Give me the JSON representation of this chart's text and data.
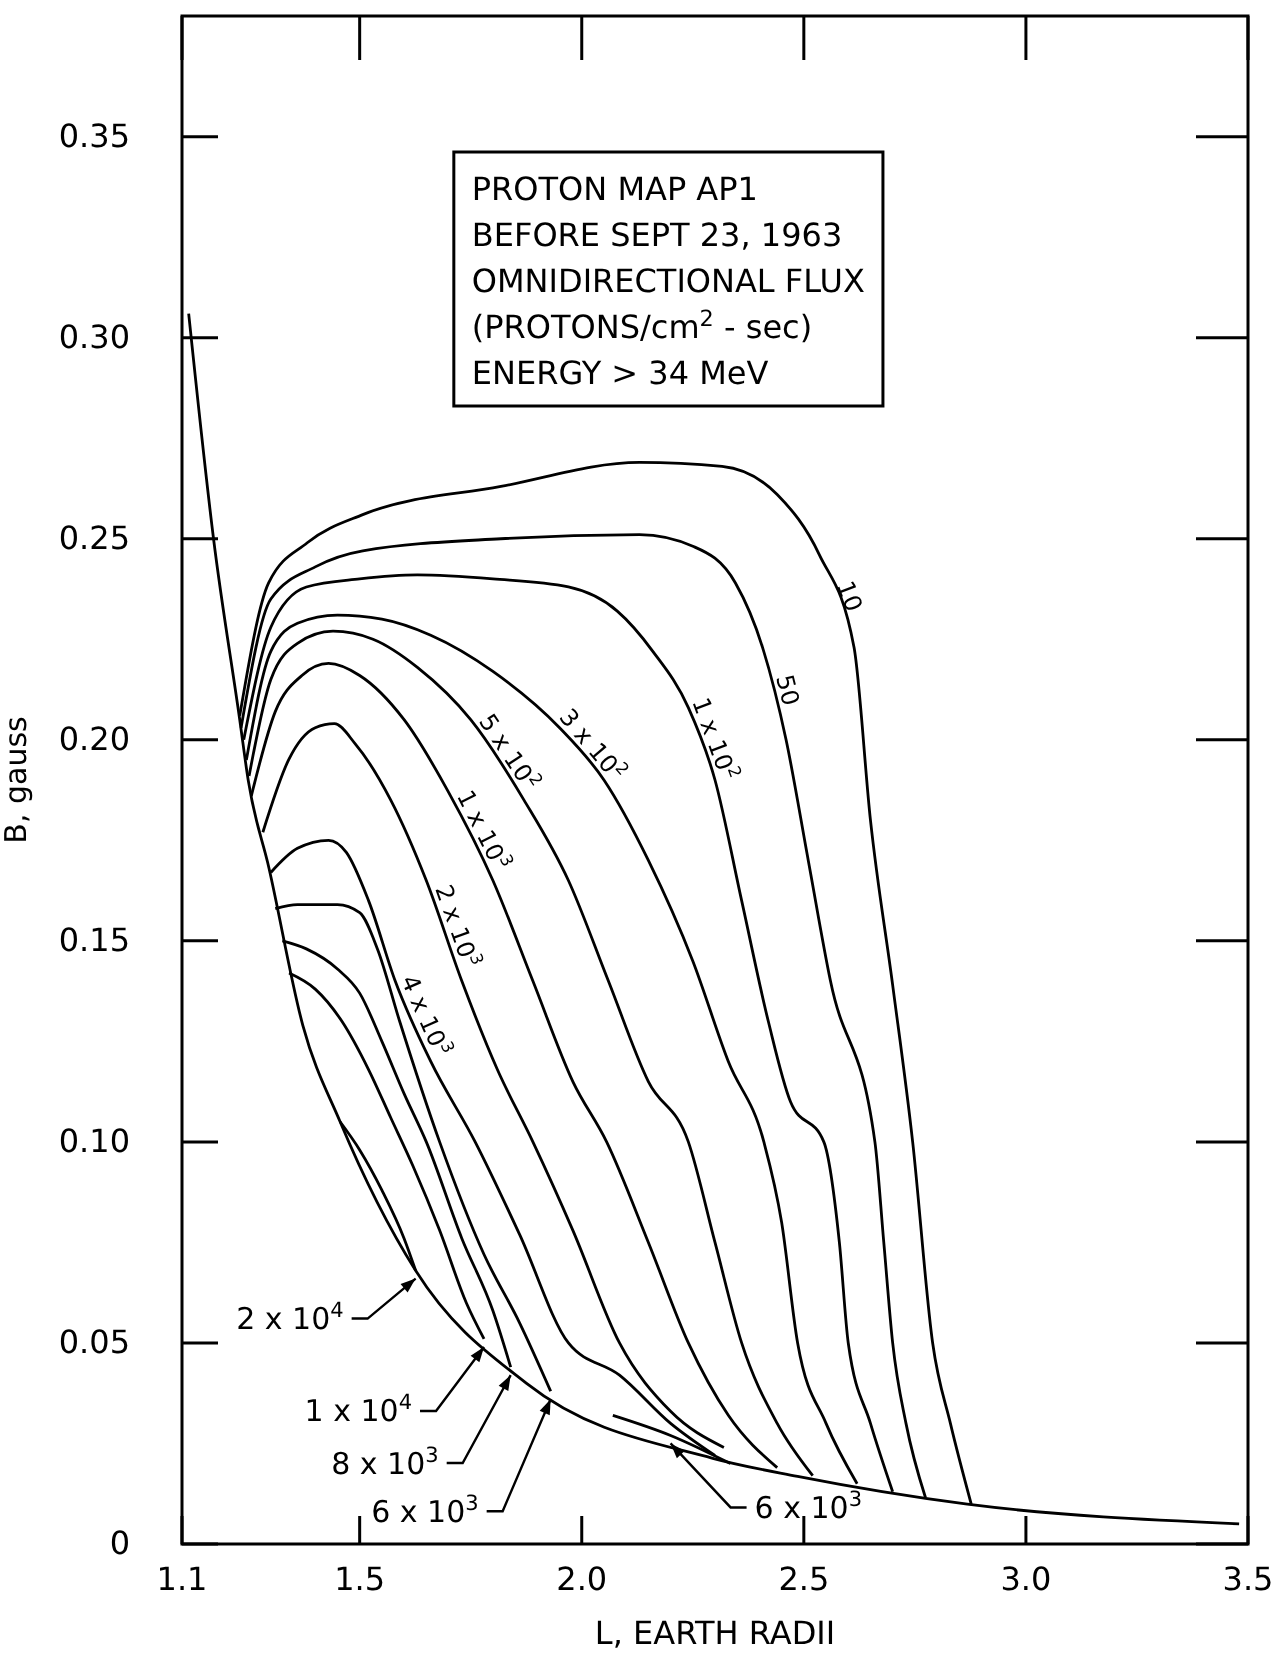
{
  "chart_data": {
    "type": "line",
    "xlabel": "L, EARTH RADII",
    "ylabel": "B, gauss",
    "annotations": [
      "PROTON MAP AP1",
      "BEFORE SEPT 23, 1963",
      "OMNIDIRECTIONAL FLUX",
      "(PROTONS/cm$^{2}$ - sec)",
      "ENERGY > 34 MeV"
    ],
    "xlim": [
      1.1,
      3.5
    ],
    "xticks": [
      1.1,
      1.5,
      {
        "value": 2,
        "label": "2.0"
      },
      2.5,
      {
        "value": 3,
        "label": "3.0"
      },
      3.5
    ],
    "ylim": [
      0,
      0.38
    ],
    "yticks": [
      0,
      0.05,
      {
        "value": 0.1,
        "label": "0.10"
      },
      0.15,
      {
        "value": 0.2,
        "label": "0.20"
      },
      0.25,
      {
        "value": 0.3,
        "label": "0.30"
      },
      0.35
    ],
    "series": [
      {
        "color": "#000000",
        "x": [
          1.115,
          1.171,
          1.23,
          1.249,
          1.296,
          1.372,
          1.456,
          1.626,
          1.875,
          2.295,
          2.486,
          2.868,
          3.48
        ],
        "values": [
          0.306,
          0.25,
          0.205,
          0.19,
          0.168,
          0.129,
          0.105,
          0.068,
          0.04,
          0.0213,
          0.0168,
          0.0099,
          0.005
        ]
      },
      {
        "name": "10",
        "color": "#000000",
        "x": [
          1.23,
          1.295,
          1.382,
          1.507,
          1.818,
          2.13,
          2.316,
          2.44,
          2.535,
          2.613,
          2.65,
          2.7,
          2.745,
          2.79,
          2.83,
          2.877
        ],
        "values": [
          0.206,
          0.239,
          0.249,
          0.256,
          0.263,
          0.269,
          0.268,
          0.261,
          0.246,
          0.223,
          0.18,
          0.139,
          0.1,
          0.05,
          0.03,
          0.0099
        ]
      },
      {
        "name": "50",
        "color": "#000000",
        "x": [
          1.233,
          1.3,
          1.4,
          1.507,
          1.818,
          2.13,
          2.253,
          2.346,
          2.407,
          2.46,
          2.51,
          2.56,
          2.66,
          2.68,
          2.7,
          2.73,
          2.774
        ],
        "values": [
          0.203,
          0.235,
          0.243,
          0.247,
          0.25,
          0.251,
          0.248,
          0.239,
          0.223,
          0.2,
          0.17,
          0.14,
          0.1,
          0.075,
          0.05,
          0.03,
          0.0115
        ]
      },
      {
        "name": "1 x 10$^{2}$",
        "color": "#000000",
        "x": [
          1.239,
          1.3,
          1.38,
          1.5,
          1.63,
          1.8,
          1.97,
          2.08,
          2.16,
          2.24,
          2.3,
          2.36,
          2.42,
          2.47,
          2.545,
          2.58,
          2.6,
          2.65,
          2.7
        ],
        "values": [
          0.2,
          0.228,
          0.238,
          0.24,
          0.241,
          0.24,
          0.238,
          0.232,
          0.222,
          0.208,
          0.19,
          0.16,
          0.13,
          0.11,
          0.1,
          0.075,
          0.05,
          0.03,
          0.013
        ]
      },
      {
        "name": "3 x 10$^{2}$",
        "color": "#000000",
        "x": [
          1.245,
          1.3,
          1.36,
          1.45,
          1.55,
          1.66,
          1.8,
          1.95,
          2.05,
          2.15,
          2.25,
          2.33,
          2.41,
          2.45,
          2.486,
          2.55,
          2.62
        ],
        "values": [
          0.195,
          0.222,
          0.229,
          0.231,
          0.23,
          0.226,
          0.217,
          0.203,
          0.19,
          0.17,
          0.145,
          0.12,
          0.1,
          0.08,
          0.05,
          0.03,
          0.015
        ]
      },
      {
        "name": "5 x 10$^{2}$",
        "color": "#000000",
        "x": [
          1.251,
          1.3,
          1.36,
          1.44,
          1.53,
          1.63,
          1.75,
          1.87,
          1.97,
          2.06,
          2.15,
          2.24,
          2.3,
          2.36,
          2.44,
          2.52
        ],
        "values": [
          0.191,
          0.215,
          0.224,
          0.227,
          0.225,
          0.218,
          0.205,
          0.185,
          0.165,
          0.14,
          0.115,
          0.1,
          0.075,
          0.05,
          0.03,
          0.017
        ]
      },
      {
        "name": "1 x 10$^{3}$",
        "color": "#000000",
        "x": [
          1.256,
          1.31,
          1.37,
          1.43,
          1.5,
          1.6,
          1.7,
          1.8,
          1.89,
          1.98,
          2.056,
          2.15,
          2.24,
          2.33,
          2.44
        ],
        "values": [
          0.186,
          0.207,
          0.216,
          0.219,
          0.216,
          0.205,
          0.187,
          0.165,
          0.14,
          0.115,
          0.1,
          0.075,
          0.05,
          0.032,
          0.019
        ]
      },
      {
        "name": "2 x 10$^{3}$",
        "color": "#000000",
        "x": [
          1.282,
          1.34,
          1.4,
          1.443,
          1.49,
          1.57,
          1.65,
          1.73,
          1.81,
          1.89,
          1.98,
          2.085,
          2.2,
          2.32
        ],
        "values": [
          0.177,
          0.195,
          0.203,
          0.204,
          0.199,
          0.185,
          0.165,
          0.14,
          0.118,
          0.1,
          0.078,
          0.05,
          0.033,
          0.024
        ]
      },
      {
        "name": "4 x 10$^{3}$",
        "color": "#000000",
        "x": [
          1.3,
          1.36,
          1.43,
          1.47,
          1.52,
          1.58,
          1.66,
          1.76,
          1.86,
          1.97,
          2.085,
          2.2,
          2.3
        ],
        "values": [
          0.167,
          0.173,
          0.175,
          0.172,
          0.16,
          0.14,
          0.12,
          0.1,
          0.077,
          0.05,
          0.042,
          0.03,
          0.022
        ]
      },
      {
        "name": "6 x 10$^{3}$",
        "color": "#000000",
        "x": [
          1.31,
          1.36,
          1.45,
          1.5,
          1.54,
          1.59,
          1.68,
          1.78,
          1.86,
          1.93
        ],
        "values": [
          0.158,
          0.159,
          0.159,
          0.157,
          0.148,
          0.13,
          0.1,
          0.072,
          0.055,
          0.038
        ]
      },
      {
        "name": "8 x 10$^{3}$",
        "color": "#000000",
        "x": [
          1.326,
          1.38,
          1.45,
          1.5,
          1.55,
          1.6,
          1.65,
          1.73,
          1.8,
          1.84
        ],
        "values": [
          0.15,
          0.148,
          0.143,
          0.137,
          0.125,
          0.112,
          0.1,
          0.076,
          0.058,
          0.044
        ]
      },
      {
        "name": "1 x 10$^{4}$",
        "color": "#000000",
        "x": [
          1.341,
          1.4,
          1.46,
          1.52,
          1.57,
          1.62,
          1.68,
          1.74,
          1.78
        ],
        "values": [
          0.142,
          0.138,
          0.13,
          0.118,
          0.106,
          0.094,
          0.078,
          0.06,
          0.051
        ]
      },
      {
        "name": "2 x 10$^{4}$",
        "color": "#000000",
        "x": [
          1.456,
          1.5,
          1.55,
          1.6,
          1.626
        ],
        "values": [
          0.105,
          0.098,
          0.088,
          0.076,
          0.068
        ]
      },
      {
        "name": "6 x 10$^{3}$",
        "color": "#000000",
        "x": [
          2.07,
          2.2,
          2.335
        ],
        "values": [
          0.032,
          0.027,
          0.02
        ]
      }
    ]
  }
}
